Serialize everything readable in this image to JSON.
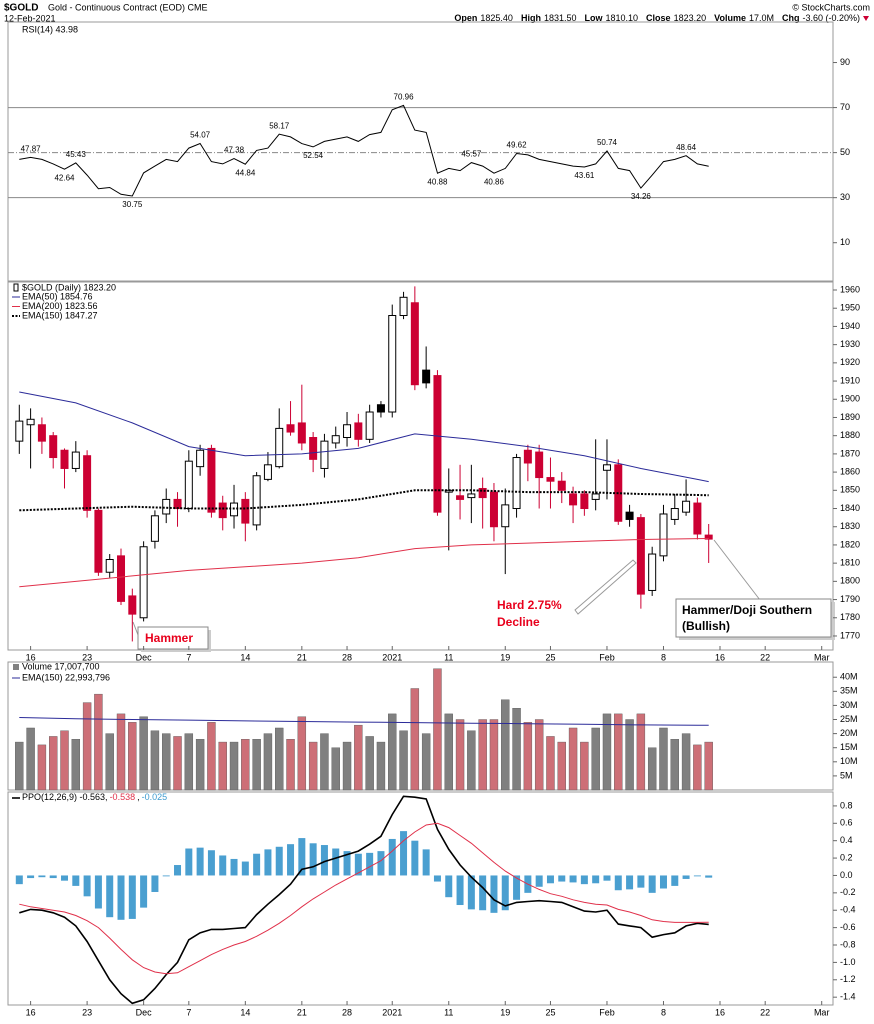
{
  "header": {
    "symbol": "$GOLD",
    "name": "Gold - Continuous Contract (EOD) CME",
    "date": "12-Feb-2021",
    "copyright": "© StockCharts.com",
    "quote": [
      [
        "Open",
        "1825.40"
      ],
      [
        "High",
        "1831.50"
      ],
      [
        "Low",
        "1810.10"
      ],
      [
        "Close",
        "1823.20"
      ],
      [
        "Volume",
        "17.0M"
      ],
      [
        "Chg",
        "-3.60 (-0.20%)"
      ]
    ]
  },
  "chart_data": [
    {
      "type": "line",
      "title": "RSI(14) 43.98",
      "color": "#000000",
      "level_color": "#888888",
      "ylim": [
        -7,
        108
      ],
      "yticks": [
        10,
        30,
        50,
        70,
        90
      ],
      "levels": [
        {
          "value": 70,
          "style": "solid"
        },
        {
          "value": 50,
          "style": "dashdot"
        },
        {
          "value": 30,
          "style": "solid"
        }
      ],
      "values": [
        47,
        47.87,
        47,
        45,
        42.64,
        45.43,
        40,
        34,
        34.5,
        31.5,
        30.75,
        41,
        44,
        47,
        46,
        52,
        54.07,
        46,
        45,
        47.38,
        44.84,
        51,
        52,
        58.17,
        57,
        54,
        52.54,
        55,
        56,
        57,
        55,
        58,
        59,
        69,
        70.96,
        60,
        59,
        40.88,
        43,
        42,
        45.57,
        44,
        40.86,
        43,
        49.62,
        49,
        47,
        46,
        45,
        44,
        43.61,
        45,
        50.74,
        43,
        42,
        34.26,
        40,
        46,
        47,
        48.64,
        45,
        43.98
      ],
      "value_labels": [
        null,
        "47.87",
        null,
        null,
        "42.64",
        "45.43",
        null,
        null,
        null,
        null,
        "30.75",
        null,
        null,
        null,
        null,
        null,
        "54.07",
        null,
        null,
        "47.38",
        "44.84",
        null,
        null,
        "58.17",
        null,
        null,
        "52.54",
        null,
        null,
        null,
        null,
        null,
        null,
        null,
        "70.96",
        null,
        null,
        "40.88",
        null,
        null,
        "45.57",
        null,
        "40.86",
        null,
        "49.62",
        null,
        null,
        null,
        null,
        null,
        "43.61",
        null,
        "50.74",
        null,
        null,
        "34.26",
        null,
        null,
        null,
        "48.64",
        null,
        null
      ]
    },
    {
      "type": "candlestick",
      "label": "$GOLD (Daily) 1823.20",
      "up_color": "#000000",
      "down_color": "#cc0033",
      "ylim": [
        1762.3,
        1964.4
      ],
      "yticks": [
        1770,
        1780,
        1790,
        1800,
        1810,
        1820,
        1830,
        1840,
        1850,
        1860,
        1870,
        1880,
        1890,
        1900,
        1910,
        1920,
        1930,
        1940,
        1950,
        1960
      ],
      "xlim": [
        -1,
        72
      ],
      "xticks": [
        {
          "value": 1,
          "label": "16"
        },
        {
          "value": 6,
          "label": "23"
        },
        {
          "value": 11,
          "label": "Dec"
        },
        {
          "value": 15,
          "label": "7"
        },
        {
          "value": 20,
          "label": "14"
        },
        {
          "value": 25,
          "label": "21"
        },
        {
          "value": 29,
          "label": "28"
        },
        {
          "value": 33,
          "label": "2021"
        },
        {
          "value": 38,
          "label": "11"
        },
        {
          "value": 43,
          "label": "19"
        },
        {
          "value": 47,
          "label": "25"
        },
        {
          "value": 52,
          "label": "Feb"
        },
        {
          "value": 57,
          "label": "8"
        },
        {
          "value": 62,
          "label": "16"
        },
        {
          "value": 66,
          "label": "22"
        },
        {
          "value": 71,
          "label": "Mar"
        }
      ],
      "x": [
        0,
        1,
        2,
        3,
        4,
        5,
        6,
        7,
        8,
        9,
        10,
        11,
        12,
        13,
        14,
        15,
        16,
        17,
        18,
        19,
        20,
        21,
        22,
        23,
        24,
        25,
        26,
        27,
        28,
        29,
        30,
        31,
        32,
        33,
        34,
        35,
        36,
        37,
        38,
        39,
        40,
        41,
        42,
        43,
        44,
        45,
        46,
        47,
        48,
        49,
        50,
        51,
        52,
        53,
        54,
        55,
        56,
        57,
        58,
        59,
        60,
        61
      ],
      "open": [
        1877,
        1886,
        1886,
        1880,
        1872,
        1862,
        1869,
        1839,
        1805,
        1814,
        1792,
        1780,
        1822,
        1837,
        1845,
        1840,
        1863,
        1873,
        1843,
        1836,
        1845,
        1831,
        1856,
        1863,
        1886,
        1887,
        1879,
        1862,
        1876,
        1879,
        1887,
        1878,
        1897,
        1893,
        1946,
        1953,
        1916,
        1913,
        1849,
        1847,
        1846,
        1851,
        1849,
        1830,
        1840,
        1872,
        1871,
        1857,
        1855,
        1848,
        1848,
        1845,
        1861,
        1864,
        1838,
        1835,
        1795,
        1814,
        1834,
        1838,
        1843,
        1825.4
      ],
      "high": [
        1897,
        1895,
        1890,
        1882,
        1873,
        1877,
        1872,
        1840,
        1815,
        1818,
        1796,
        1822,
        1839,
        1851,
        1849,
        1872,
        1875,
        1875,
        1847,
        1853,
        1849,
        1860,
        1871,
        1895,
        1899,
        1908,
        1882,
        1881,
        1885,
        1893,
        1892,
        1897,
        1899,
        1952,
        1959,
        1962,
        1929,
        1916,
        1862,
        1864,
        1864,
        1857,
        1854,
        1851,
        1870,
        1875,
        1875,
        1868,
        1860,
        1852,
        1850,
        1878,
        1878,
        1867,
        1842,
        1837,
        1819,
        1842,
        1848,
        1856,
        1846,
        1831.5
      ],
      "low": [
        1870,
        1862,
        1870,
        1862,
        1851,
        1860,
        1835,
        1803,
        1802,
        1787,
        1767,
        1778,
        1818,
        1832,
        1830,
        1838,
        1858,
        1835,
        1828,
        1829,
        1822,
        1828,
        1855,
        1862,
        1880,
        1872,
        1860,
        1857,
        1873,
        1874,
        1874,
        1876,
        1890,
        1890,
        1944,
        1905,
        1906,
        1836,
        1817,
        1834,
        1832,
        1829,
        1822,
        1804,
        1835,
        1855,
        1840,
        1840,
        1843,
        1832,
        1836,
        1839,
        1845,
        1831,
        1830,
        1785,
        1792,
        1811,
        1831,
        1836,
        1823,
        1810.1
      ],
      "close": [
        1888,
        1889,
        1877,
        1868,
        1862,
        1871,
        1839,
        1805,
        1812,
        1789,
        1782,
        1819,
        1836,
        1845,
        1840,
        1866,
        1872,
        1838,
        1835,
        1843,
        1832,
        1858,
        1864,
        1884,
        1882,
        1876,
        1867,
        1877,
        1880,
        1886,
        1878,
        1893,
        1893,
        1946,
        1956,
        1908,
        1909,
        1838,
        1850,
        1845,
        1848,
        1846,
        1830,
        1842,
        1868,
        1865,
        1857,
        1855,
        1850,
        1842,
        1840,
        1848,
        1864,
        1833,
        1834,
        1793,
        1815,
        1837,
        1840,
        1844,
        1826,
        1823.2
      ],
      "series": [
        {
          "name": "EMA(50) 1854.76",
          "color": "#2b2b99",
          "line_style": "solid",
          "x": [
            0,
            5,
            10,
            15,
            20,
            25,
            30,
            35,
            40,
            45,
            50,
            55,
            60,
            61
          ],
          "values": [
            1904,
            1898,
            1887,
            1874,
            1869,
            1870,
            1873,
            1881,
            1878,
            1874,
            1869,
            1862,
            1856,
            1854.76
          ]
        },
        {
          "name": "EMA(200) 1823.56",
          "color": "#e0304a",
          "line_style": "solid",
          "x": [
            0,
            5,
            10,
            15,
            20,
            25,
            30,
            35,
            40,
            45,
            50,
            55,
            60,
            61
          ],
          "values": [
            1797,
            1800,
            1803,
            1806,
            1808,
            1810,
            1813,
            1818,
            1820,
            1821,
            1822,
            1823,
            1823.5,
            1823.56
          ]
        },
        {
          "name": "EMA(150) 1847.27",
          "color": "#000000",
          "line_style": "dotted",
          "x": [
            0,
            5,
            10,
            15,
            20,
            25,
            30,
            35,
            40,
            45,
            50,
            55,
            60,
            61
          ],
          "values": [
            1839,
            1840,
            1841,
            1840,
            1840,
            1842,
            1845,
            1850,
            1850,
            1849,
            1849,
            1848,
            1847.4,
            1847.27
          ]
        }
      ],
      "annotations": [
        {
          "lines": [
            "Hammer"
          ]
        },
        {
          "lines": [
            "Hard 2.75%",
            "Decline"
          ]
        },
        {
          "lines": [
            "Hammer/Doji Southern",
            "(Bullish)"
          ]
        }
      ]
    },
    {
      "type": "bar",
      "title": "Volume 17,007,700",
      "up_color": "#808080",
      "down_color": "#cd6f77",
      "ylim": [
        0,
        45.4
      ],
      "yticks": [
        {
          "value": 5,
          "label": "5M"
        },
        {
          "value": 10,
          "label": "10M"
        },
        {
          "value": 15,
          "label": "15M"
        },
        {
          "value": 20,
          "label": "20M"
        },
        {
          "value": 25,
          "label": "25M"
        },
        {
          "value": 30,
          "label": "30M"
        },
        {
          "value": 35,
          "label": "35M"
        },
        {
          "value": 40,
          "label": "40M"
        }
      ],
      "values": [
        17,
        22,
        16,
        19,
        21,
        18,
        31,
        34,
        20,
        27,
        24,
        26,
        21,
        20,
        19,
        20,
        18,
        24,
        17,
        17,
        18,
        18,
        20,
        22,
        18,
        26,
        17,
        20,
        15,
        17,
        23,
        19,
        17,
        27,
        21,
        36,
        20,
        43,
        27,
        25,
        21,
        25,
        25,
        32,
        29,
        24,
        25,
        19,
        17,
        22,
        17,
        22,
        27,
        27,
        25,
        27,
        15,
        22,
        18,
        20,
        16,
        17
      ],
      "series": [
        {
          "name": "EMA(150) 22,993,796",
          "color": "#2b2b99",
          "x": [
            0,
            5,
            10,
            15,
            20,
            25,
            30,
            35,
            40,
            45,
            50,
            55,
            60,
            61
          ],
          "values": [
            25.7,
            25.3,
            25,
            24.8,
            24.5,
            24.3,
            24.1,
            23.9,
            23.7,
            23.5,
            23.3,
            23.1,
            23,
            22.99
          ]
        }
      ]
    },
    {
      "type": "combo",
      "title_parts": [
        {
          "text": "PPO(12,26,9) -0.563,",
          "color": "#000000"
        },
        {
          "text": "-0.538",
          "color": "#e0304a"
        },
        {
          "text": ",",
          "color": "#000000"
        },
        {
          "text": "-0.025",
          "color": "#3d9bd0"
        }
      ],
      "ylim": [
        -1.49,
        0.96
      ],
      "yticks": [
        -1.4,
        -1.2,
        {
          "value": -1,
          "label": "-1.0"
        },
        -0.8,
        -0.6,
        -0.4,
        -0.2,
        {
          "value": 0,
          "label": "0.0"
        },
        0.2,
        0.4,
        0.6,
        0.8
      ],
      "histogram": {
        "color": "#4a9fd0",
        "values": [
          -0.1,
          -0.03,
          -0.02,
          -0.03,
          -0.06,
          -0.12,
          -0.24,
          -0.38,
          -0.48,
          -0.51,
          -0.5,
          -0.37,
          -0.19,
          -0.01,
          0.12,
          0.31,
          0.32,
          0.29,
          0.23,
          0.19,
          0.16,
          0.25,
          0.3,
          0.33,
          0.36,
          0.43,
          0.37,
          0.35,
          0.31,
          0.28,
          0.25,
          0.26,
          0.28,
          0.42,
          0.51,
          0.4,
          0.3,
          -0.07,
          -0.25,
          -0.34,
          -0.39,
          -0.4,
          -0.43,
          -0.4,
          -0.28,
          -0.2,
          -0.13,
          -0.09,
          -0.07,
          -0.08,
          -0.1,
          -0.09,
          -0.06,
          -0.17,
          -0.16,
          -0.14,
          -0.2,
          -0.15,
          -0.12,
          -0.04,
          -0.01,
          -0.025
        ]
      },
      "series": [
        {
          "color": "#000000",
          "values": [
            -0.43,
            -0.39,
            -0.4,
            -0.43,
            -0.48,
            -0.58,
            -0.76,
            -0.98,
            -1.2,
            -1.36,
            -1.47,
            -1.43,
            -1.3,
            -1.14,
            -1.0,
            -0.74,
            -0.66,
            -0.62,
            -0.62,
            -0.61,
            -0.6,
            -0.45,
            -0.33,
            -0.22,
            -0.1,
            0.07,
            0.1,
            0.16,
            0.2,
            0.24,
            0.28,
            0.36,
            0.45,
            0.7,
            0.91,
            0.9,
            0.88,
            0.53,
            0.3,
            0.12,
            -0.02,
            -0.14,
            -0.28,
            -0.35,
            -0.31,
            -0.3,
            -0.29,
            -0.3,
            -0.31,
            -0.36,
            -0.41,
            -0.42,
            -0.4,
            -0.56,
            -0.58,
            -0.6,
            -0.71,
            -0.68,
            -0.66,
            -0.58,
            -0.55,
            -0.563
          ]
        },
        {
          "color": "#e0304a",
          "values": [
            -0.33,
            -0.36,
            -0.38,
            -0.4,
            -0.42,
            -0.46,
            -0.52,
            -0.6,
            -0.72,
            -0.85,
            -0.97,
            -1.06,
            -1.11,
            -1.13,
            -1.12,
            -1.05,
            -0.98,
            -0.91,
            -0.85,
            -0.8,
            -0.76,
            -0.7,
            -0.63,
            -0.55,
            -0.46,
            -0.36,
            -0.27,
            -0.19,
            -0.11,
            -0.04,
            0.03,
            0.1,
            0.17,
            0.28,
            0.4,
            0.5,
            0.58,
            0.6,
            0.55,
            0.46,
            0.37,
            0.26,
            0.15,
            0.05,
            -0.03,
            -0.1,
            -0.16,
            -0.21,
            -0.24,
            -0.28,
            -0.31,
            -0.33,
            -0.34,
            -0.39,
            -0.42,
            -0.46,
            -0.51,
            -0.53,
            -0.54,
            -0.54,
            -0.54,
            -0.538
          ]
        }
      ]
    }
  ]
}
